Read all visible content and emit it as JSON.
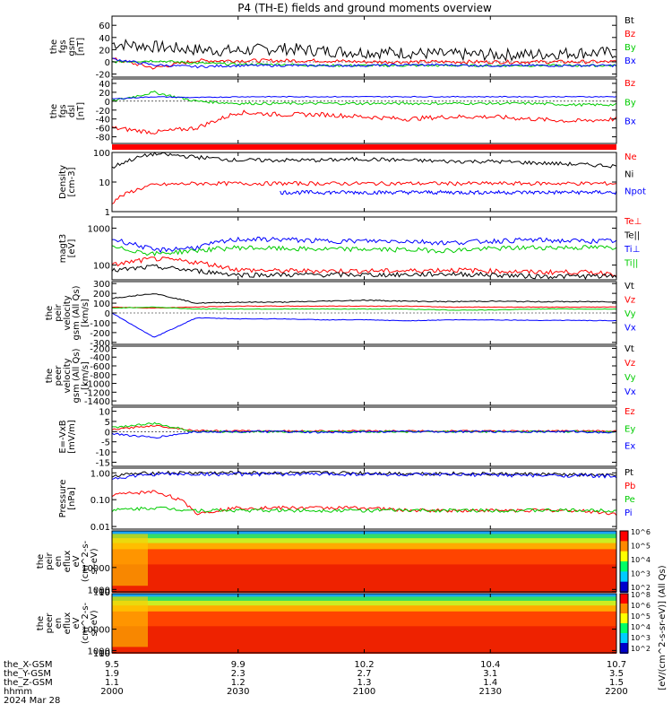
{
  "title": "P4 (TH-E) fields and ground moments overview",
  "chart_data": [
    {
      "id": "fgs",
      "type": "line",
      "ylabel": [
        "the",
        "fgs",
        "gsm",
        "[nT]"
      ],
      "yticks": [
        60,
        40,
        20,
        0,
        -20
      ],
      "ylim": [
        -25,
        75
      ],
      "series": [
        {
          "name": "Bt",
          "color": "#000000",
          "x": [
            9.5,
            9.6,
            9.7,
            9.8,
            9.9,
            10.0,
            10.1,
            10.2,
            10.3,
            10.4,
            10.5,
            10.6,
            10.7
          ],
          "y": [
            30,
            25,
            20,
            18,
            22,
            18,
            16,
            15,
            12,
            12,
            12,
            15,
            15
          ],
          "noise": 10
        },
        {
          "name": "Bz",
          "color": "#ff0000",
          "x": [
            9.5,
            9.6,
            9.7,
            9.8,
            9.9,
            10.0,
            10.1,
            10.2,
            10.3,
            10.4,
            10.5,
            10.6,
            10.7
          ],
          "y": [
            5,
            -10,
            2,
            2,
            2,
            2,
            0,
            0,
            0,
            0,
            0,
            0,
            0
          ],
          "noise": 3
        },
        {
          "name": "By",
          "color": "#00cc00",
          "x": [
            9.5,
            9.6,
            9.7,
            9.8,
            9.9,
            10.0,
            10.1,
            10.2,
            10.3,
            10.4,
            10.5,
            10.6,
            10.7
          ],
          "y": [
            0,
            2,
            -2,
            -4,
            -4,
            -6,
            -6,
            -6,
            -6,
            -6,
            -6,
            -6,
            -6
          ],
          "noise": 2
        },
        {
          "name": "Bx",
          "color": "#0000ff",
          "x": [
            9.5,
            9.6,
            9.7,
            9.8,
            9.9,
            10.0,
            10.1,
            10.2,
            10.3,
            10.4,
            10.5,
            10.6,
            10.7
          ],
          "y": [
            5,
            -5,
            -8,
            -6,
            -6,
            -6,
            -6,
            -5,
            -5,
            -6,
            -6,
            -6,
            -6
          ],
          "noise": 2
        }
      ]
    },
    {
      "id": "fgs_dsl",
      "type": "line",
      "ylabel": [
        "the",
        "fgs",
        "dsl",
        "[nT]"
      ],
      "yticks": [
        40,
        20,
        0,
        -20,
        -40,
        -60,
        -80
      ],
      "ylim": [
        -95,
        50
      ],
      "series": [
        {
          "name": "Bz",
          "color": "#ff0000",
          "x": [
            9.5,
            9.6,
            9.7,
            9.8,
            9.9,
            10.0,
            10.1,
            10.2,
            10.3,
            10.4,
            10.5,
            10.6,
            10.7
          ],
          "y": [
            -60,
            -70,
            -60,
            -25,
            -30,
            -30,
            -35,
            -40,
            -35,
            -35,
            -40,
            -45,
            -40
          ],
          "noise": 5
        },
        {
          "name": "By",
          "color": "#00cc00",
          "x": [
            9.5,
            9.6,
            9.7,
            9.8,
            9.9,
            10.0,
            10.1,
            10.2,
            10.3,
            10.4,
            10.5,
            10.6,
            10.7
          ],
          "y": [
            0,
            20,
            0,
            -5,
            -5,
            -5,
            -5,
            -5,
            -5,
            -5,
            -5,
            -8,
            -8
          ],
          "noise": 3
        },
        {
          "name": "Bx",
          "color": "#0000ff",
          "x": [
            9.5,
            9.6,
            9.7,
            9.8,
            9.9,
            10.0,
            10.1,
            10.2,
            10.3,
            10.4,
            10.5,
            10.6,
            10.7
          ],
          "y": [
            5,
            10,
            8,
            10,
            10,
            10,
            10,
            10,
            10,
            10,
            10,
            10,
            10
          ],
          "noise": 1
        }
      ]
    },
    {
      "id": "density",
      "type": "line",
      "log": true,
      "ylabel": [
        "Density",
        "[cm-3]"
      ],
      "yticks": [
        100,
        10,
        1
      ],
      "ylim": [
        1,
        100
      ],
      "series": [
        {
          "name": "Ne",
          "color": "#ff0000",
          "x": [
            9.5,
            9.6,
            9.7,
            9.8,
            9.9,
            10.0,
            10.1,
            10.2,
            10.3,
            10.4,
            10.5,
            10.6,
            10.7
          ],
          "y": [
            2,
            8,
            9,
            9,
            9,
            9,
            9,
            9,
            9,
            9,
            9,
            9,
            9
          ],
          "noise": 0
        },
        {
          "name": "Ni",
          "color": "#000000",
          "x": [
            9.5,
            9.6,
            9.7,
            9.8,
            9.9,
            10.0,
            10.1,
            10.2,
            10.3,
            10.4,
            10.5,
            10.6,
            10.7
          ],
          "y": [
            30,
            90,
            70,
            55,
            55,
            55,
            60,
            55,
            50,
            50,
            45,
            40,
            35
          ],
          "noise": 0
        },
        {
          "name": "Npot",
          "color": "#0000ff",
          "x": [
            9.9,
            10.0,
            10.1,
            10.2,
            10.3,
            10.4,
            10.5,
            10.6,
            10.7
          ],
          "y": [
            4.5,
            4.5,
            4.5,
            4.5,
            4.5,
            4.5,
            4.5,
            4.5,
            4.5
          ],
          "noise": 0
        }
      ]
    },
    {
      "id": "temp",
      "type": "line",
      "log": true,
      "ylabel": [
        "magt3",
        "[eV]"
      ],
      "yticks": [
        1000,
        100
      ],
      "ylim": [
        40,
        2000
      ],
      "series": [
        {
          "name": "Te⊥",
          "color": "#ff0000",
          "x": [
            9.5,
            9.6,
            9.7,
            9.8,
            9.9,
            10.0,
            10.1,
            10.2,
            10.3,
            10.4,
            10.5,
            10.6,
            10.7
          ],
          "y": [
            100,
            150,
            120,
            75,
            70,
            70,
            70,
            70,
            75,
            70,
            65,
            65,
            60
          ],
          "noise": 0
        },
        {
          "name": "Te||",
          "color": "#000000",
          "x": [
            9.5,
            9.6,
            9.7,
            9.8,
            9.9,
            10.0,
            10.1,
            10.2,
            10.3,
            10.4,
            10.5,
            10.6,
            10.7
          ],
          "y": [
            70,
            90,
            70,
            55,
            55,
            55,
            55,
            55,
            58,
            55,
            50,
            50,
            50
          ],
          "noise": 0
        },
        {
          "name": "Ti⊥",
          "color": "#0000ff",
          "x": [
            9.5,
            9.6,
            9.7,
            9.8,
            9.9,
            10.0,
            10.1,
            10.2,
            10.3,
            10.4,
            10.5,
            10.6,
            10.7
          ],
          "y": [
            500,
            250,
            300,
            500,
            500,
            450,
            450,
            450,
            400,
            450,
            480,
            450,
            450
          ],
          "noise": 0
        },
        {
          "name": "Ti||",
          "color": "#00cc00",
          "x": [
            9.5,
            9.6,
            9.7,
            9.8,
            9.9,
            10.0,
            10.1,
            10.2,
            10.3,
            10.4,
            10.5,
            10.6,
            10.7
          ],
          "y": [
            300,
            200,
            250,
            300,
            280,
            270,
            270,
            260,
            250,
            280,
            300,
            300,
            300
          ],
          "noise": 0
        }
      ]
    },
    {
      "id": "peir_vel",
      "type": "line",
      "ylabel": [
        "the",
        "peir",
        "velocity",
        "gsm (All Qs)",
        "[km/s]"
      ],
      "yticks": [
        300,
        200,
        100,
        0,
        -100,
        -200,
        -300
      ],
      "ylim": [
        -320,
        320
      ],
      "series": [
        {
          "name": "Vt",
          "color": "#000000",
          "x": [
            9.5,
            9.6,
            9.7,
            9.8,
            9.9,
            10.0,
            10.1,
            10.2,
            10.3,
            10.4,
            10.5,
            10.6,
            10.7
          ],
          "y": [
            150,
            200,
            100,
            110,
            110,
            120,
            130,
            120,
            115,
            120,
            115,
            115,
            115
          ],
          "noise": 5
        },
        {
          "name": "Vz",
          "color": "#ff0000",
          "x": [
            9.5,
            9.6,
            9.7,
            9.8,
            9.9,
            10.0,
            10.1,
            10.2,
            10.3,
            10.4,
            10.5,
            10.6,
            10.7
          ],
          "y": [
            60,
            50,
            60,
            70,
            70,
            70,
            70,
            70,
            60,
            60,
            60,
            60,
            60
          ],
          "noise": 3
        },
        {
          "name": "Vy",
          "color": "#00cc00",
          "x": [
            9.5,
            9.6,
            9.7,
            9.8,
            9.9,
            10.0,
            10.1,
            10.2,
            10.3,
            10.4,
            10.5,
            10.6,
            10.7
          ],
          "y": [
            50,
            60,
            40,
            40,
            40,
            40,
            40,
            40,
            30,
            30,
            40,
            40,
            40
          ],
          "noise": 3
        },
        {
          "name": "Vx",
          "color": "#0000ff",
          "x": [
            9.5,
            9.6,
            9.7,
            9.8,
            9.9,
            10.0,
            10.1,
            10.2,
            10.3,
            10.4,
            10.5,
            10.6,
            10.7
          ],
          "y": [
            0,
            -250,
            -50,
            -60,
            -60,
            -70,
            -70,
            -80,
            -70,
            -70,
            -75,
            -75,
            -80
          ],
          "noise": 3
        }
      ]
    },
    {
      "id": "peer_vel",
      "type": "line",
      "ylabel": [
        "the",
        "peer",
        "velocity",
        "gsm (All Qs)",
        "[km/s]"
      ],
      "yticks": [
        -200,
        -400,
        -600,
        -800,
        -1000,
        -1200,
        -1400
      ],
      "ylim": [
        -1500,
        -150
      ],
      "series": []
    },
    {
      "id": "efield",
      "type": "line",
      "ylabel": [
        "E=-VxB",
        "[mV/m]"
      ],
      "yticks": [
        10,
        5,
        0,
        -5,
        -10,
        -15
      ],
      "ylim": [
        -17,
        12
      ],
      "series": [
        {
          "name": "Ez",
          "color": "#ff0000",
          "x": [
            9.5,
            9.6,
            9.7,
            9.8,
            9.9,
            10.0,
            10.1,
            10.2,
            10.3,
            10.4,
            10.5,
            10.6,
            10.7
          ],
          "y": [
            1,
            3,
            0.5,
            0.3,
            0.3,
            0.3,
            0.3,
            0.3,
            0.3,
            0.3,
            0.3,
            0.3,
            0.3
          ],
          "noise": 0.4
        },
        {
          "name": "Ey",
          "color": "#00cc00",
          "x": [
            9.5,
            9.6,
            9.7,
            9.8,
            9.9,
            10.0,
            10.1,
            10.2,
            10.3,
            10.4,
            10.5,
            10.6,
            10.7
          ],
          "y": [
            2,
            4,
            0,
            0,
            0,
            0,
            0,
            0,
            0,
            0,
            0,
            0,
            0
          ],
          "noise": 0.5
        },
        {
          "name": "Ex",
          "color": "#0000ff",
          "x": [
            9.5,
            9.6,
            9.7,
            9.8,
            9.9,
            10.0,
            10.1,
            10.2,
            10.3,
            10.4,
            10.5,
            10.6,
            10.7
          ],
          "y": [
            -1,
            -3,
            0,
            0,
            0,
            -0.5,
            0,
            0,
            0,
            0,
            0,
            0,
            -0.5
          ],
          "noise": 0.5
        }
      ]
    },
    {
      "id": "pressure",
      "type": "line",
      "log": true,
      "ylabel": [
        "Pressure",
        "[nPa]"
      ],
      "yticks": [
        1.0,
        0.1,
        0.01
      ],
      "yticklabels": [
        "1.00",
        "0.10",
        "0.01"
      ],
      "ylim": [
        0.008,
        1.5
      ],
      "series": [
        {
          "name": "Pt",
          "color": "#000000",
          "x": [
            9.5,
            9.6,
            9.7,
            9.8,
            9.9,
            10.0,
            10.1,
            10.2,
            10.3,
            10.4,
            10.5,
            10.6,
            10.7
          ],
          "y": [
            0.8,
            1.0,
            1.0,
            1.0,
            1.0,
            1.0,
            1.0,
            0.95,
            0.95,
            0.9,
            0.9,
            0.85,
            0.8
          ],
          "noise": 0
        },
        {
          "name": "Pb",
          "color": "#ff0000",
          "x": [
            9.5,
            9.6,
            9.7,
            9.8,
            9.9,
            10.0,
            10.1,
            10.2,
            10.3,
            10.4,
            10.5,
            10.6,
            10.7
          ],
          "y": [
            0.15,
            0.2,
            0.03,
            0.05,
            0.05,
            0.05,
            0.05,
            0.04,
            0.04,
            0.04,
            0.04,
            0.04,
            0.03
          ],
          "noise": 0
        },
        {
          "name": "Pe",
          "color": "#00cc00",
          "x": [
            9.5,
            9.6,
            9.7,
            9.8,
            9.9,
            10.0,
            10.1,
            10.2,
            10.3,
            10.4,
            10.5,
            10.6,
            10.7
          ],
          "y": [
            0.04,
            0.05,
            0.04,
            0.04,
            0.04,
            0.04,
            0.04,
            0.04,
            0.04,
            0.04,
            0.04,
            0.04,
            0.04
          ],
          "noise": 0
        },
        {
          "name": "Pi",
          "color": "#0000ff",
          "x": [
            9.5,
            9.6,
            9.7,
            9.8,
            9.9,
            10.0,
            10.1,
            10.2,
            10.3,
            10.4,
            10.5,
            10.6,
            10.7
          ],
          "y": [
            0.6,
            0.9,
            0.9,
            0.9,
            0.9,
            0.9,
            0.9,
            0.85,
            0.85,
            0.85,
            0.8,
            0.8,
            0.75
          ],
          "noise": 0
        }
      ]
    },
    {
      "id": "peir_spec",
      "type": "heatmap",
      "ylabel": [
        "the",
        "peir",
        "en",
        "eflux",
        "eV",
        "(cm^2-s-",
        "sr-eV)"
      ],
      "yticks": [
        10000,
        1000,
        100,
        10
      ],
      "ylim": [
        7,
        25000
      ],
      "zlabel": "[eV/(cm^2-s-sr-eV)] (All Qs)",
      "zticks": [
        "10^6",
        "10^5",
        "10^4",
        "10^3",
        "10^2"
      ]
    },
    {
      "id": "peer_spec",
      "type": "heatmap",
      "ylabel": [
        "the",
        "peer",
        "en",
        "eflux",
        "eV",
        "(cm^2-s-",
        "sr-eV)"
      ],
      "yticks": [
        10000,
        1000,
        100,
        10
      ],
      "ylim": [
        7,
        25000
      ],
      "zlabel": "[eV/(cm^2-s-sr-eV)]",
      "zticks": [
        "10^8",
        "10^6",
        "10^5",
        "10^4",
        "10^3",
        "10^2"
      ]
    }
  ],
  "xaxis": {
    "rows": [
      {
        "label": "the_X-GSM",
        "values": [
          "9.5",
          "9.9",
          "10.2",
          "10.4",
          "10.7"
        ]
      },
      {
        "label": "the_Y-GSM",
        "values": [
          "1.9",
          "2.3",
          "2.7",
          "3.1",
          "3.5"
        ]
      },
      {
        "label": "the_Z-GSM",
        "values": [
          "1.1",
          "1.2",
          "1.3",
          "1.4",
          "1.5"
        ]
      },
      {
        "label": "hhmm",
        "values": [
          "2000",
          "2030",
          "2100",
          "2130",
          "2200"
        ]
      }
    ],
    "date": "2024 Mar 28",
    "xlim": [
      9.5,
      10.7
    ]
  }
}
